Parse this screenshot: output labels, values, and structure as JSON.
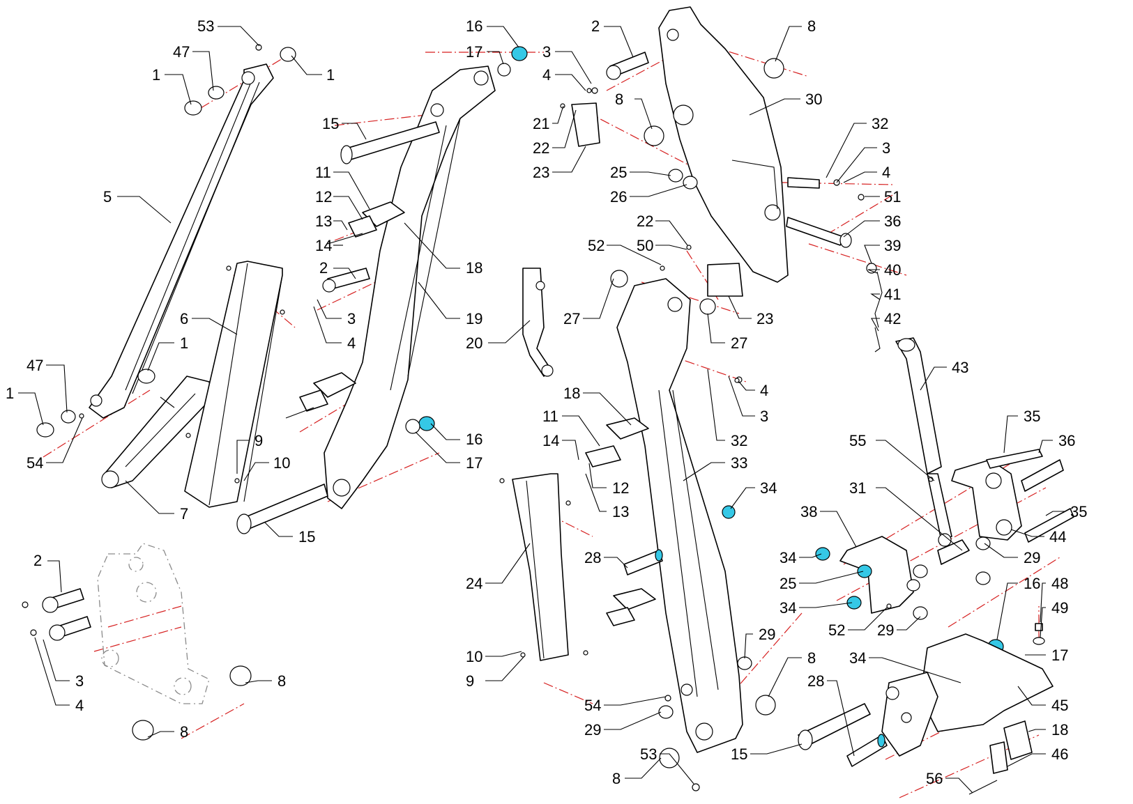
{
  "labels": [
    {
      "id": "c53a",
      "text": "53"
    },
    {
      "id": "c47a",
      "text": "47"
    },
    {
      "id": "c1a",
      "text": "1"
    },
    {
      "id": "c1b",
      "text": "1"
    },
    {
      "id": "c5",
      "text": "5"
    },
    {
      "id": "c6",
      "text": "6"
    },
    {
      "id": "c1c",
      "text": "1"
    },
    {
      "id": "c47b",
      "text": "47"
    },
    {
      "id": "c1d",
      "text": "1"
    },
    {
      "id": "c54a",
      "text": "54"
    },
    {
      "id": "c7",
      "text": "7"
    },
    {
      "id": "c9a",
      "text": "9"
    },
    {
      "id": "c10a",
      "text": "10"
    },
    {
      "id": "c16a",
      "text": "16"
    },
    {
      "id": "c17a",
      "text": "17"
    },
    {
      "id": "c15a",
      "text": "15"
    },
    {
      "id": "c11a",
      "text": "11"
    },
    {
      "id": "c12a",
      "text": "12"
    },
    {
      "id": "c13a",
      "text": "13"
    },
    {
      "id": "c14a",
      "text": "14"
    },
    {
      "id": "c2a",
      "text": "2"
    },
    {
      "id": "c3a",
      "text": "3"
    },
    {
      "id": "c4a",
      "text": "4"
    },
    {
      "id": "c18a",
      "text": "18"
    },
    {
      "id": "c19",
      "text": "19"
    },
    {
      "id": "c20",
      "text": "20"
    },
    {
      "id": "c16b",
      "text": "16"
    },
    {
      "id": "c17b",
      "text": "17"
    },
    {
      "id": "c15b",
      "text": "15"
    },
    {
      "id": "c2b",
      "text": "2"
    },
    {
      "id": "c3b",
      "text": "3"
    },
    {
      "id": "c4b",
      "text": "4"
    },
    {
      "id": "c21",
      "text": "21"
    },
    {
      "id": "c22a",
      "text": "22"
    },
    {
      "id": "c23a",
      "text": "23"
    },
    {
      "id": "c8a",
      "text": "8"
    },
    {
      "id": "c8b",
      "text": "8"
    },
    {
      "id": "c30",
      "text": "30"
    },
    {
      "id": "c25a",
      "text": "25"
    },
    {
      "id": "c26",
      "text": "26"
    },
    {
      "id": "c32a",
      "text": "32"
    },
    {
      "id": "c3c",
      "text": "3"
    },
    {
      "id": "c4c",
      "text": "4"
    },
    {
      "id": "c51",
      "text": "51"
    },
    {
      "id": "c36a",
      "text": "36"
    },
    {
      "id": "c22b",
      "text": "22"
    },
    {
      "id": "c50",
      "text": "50"
    },
    {
      "id": "c52a",
      "text": "52"
    },
    {
      "id": "c39",
      "text": "39"
    },
    {
      "id": "c40",
      "text": "40"
    },
    {
      "id": "c41",
      "text": "41"
    },
    {
      "id": "c42",
      "text": "42"
    },
    {
      "id": "c27a",
      "text": "27"
    },
    {
      "id": "c27b",
      "text": "27"
    },
    {
      "id": "c23b",
      "text": "23"
    },
    {
      "id": "c4d",
      "text": "4"
    },
    {
      "id": "c3d",
      "text": "3"
    },
    {
      "id": "c43",
      "text": "43"
    },
    {
      "id": "c18b",
      "text": "18"
    },
    {
      "id": "c11b",
      "text": "11"
    },
    {
      "id": "c14b",
      "text": "14"
    },
    {
      "id": "c12b",
      "text": "12"
    },
    {
      "id": "c13b",
      "text": "13"
    },
    {
      "id": "c32b",
      "text": "32"
    },
    {
      "id": "c33",
      "text": "33"
    },
    {
      "id": "c34a",
      "text": "34"
    },
    {
      "id": "c35a",
      "text": "35"
    },
    {
      "id": "c36b",
      "text": "36"
    },
    {
      "id": "c55",
      "text": "55"
    },
    {
      "id": "c31",
      "text": "31"
    },
    {
      "id": "c38",
      "text": "38"
    },
    {
      "id": "c35b",
      "text": "35"
    },
    {
      "id": "c34b",
      "text": "34"
    },
    {
      "id": "c44",
      "text": "44"
    },
    {
      "id": "c28a",
      "text": "28"
    },
    {
      "id": "c25b",
      "text": "25"
    },
    {
      "id": "c29a",
      "text": "29"
    },
    {
      "id": "c24",
      "text": "24"
    },
    {
      "id": "c34c",
      "text": "34"
    },
    {
      "id": "c52b",
      "text": "52"
    },
    {
      "id": "c29b",
      "text": "29"
    },
    {
      "id": "c16c",
      "text": "16"
    },
    {
      "id": "c48",
      "text": "48"
    },
    {
      "id": "c49",
      "text": "49"
    },
    {
      "id": "c17c",
      "text": "17"
    },
    {
      "id": "c10b",
      "text": "10"
    },
    {
      "id": "c9b",
      "text": "9"
    },
    {
      "id": "c29c",
      "text": "29"
    },
    {
      "id": "c8c",
      "text": "8"
    },
    {
      "id": "c34d",
      "text": "34"
    },
    {
      "id": "c28b",
      "text": "28"
    },
    {
      "id": "c54b",
      "text": "54"
    },
    {
      "id": "c45",
      "text": "45"
    },
    {
      "id": "c29d",
      "text": "29"
    },
    {
      "id": "c18c",
      "text": "18"
    },
    {
      "id": "c53b",
      "text": "53"
    },
    {
      "id": "c15c",
      "text": "15"
    },
    {
      "id": "c8d",
      "text": "8"
    },
    {
      "id": "c56",
      "text": "56"
    },
    {
      "id": "c46",
      "text": "46"
    },
    {
      "id": "c2c",
      "text": "2"
    },
    {
      "id": "c3e",
      "text": "3"
    },
    {
      "id": "c4e",
      "text": "4"
    },
    {
      "id": "c8e",
      "text": "8"
    },
    {
      "id": "c8f",
      "text": "8"
    }
  ]
}
